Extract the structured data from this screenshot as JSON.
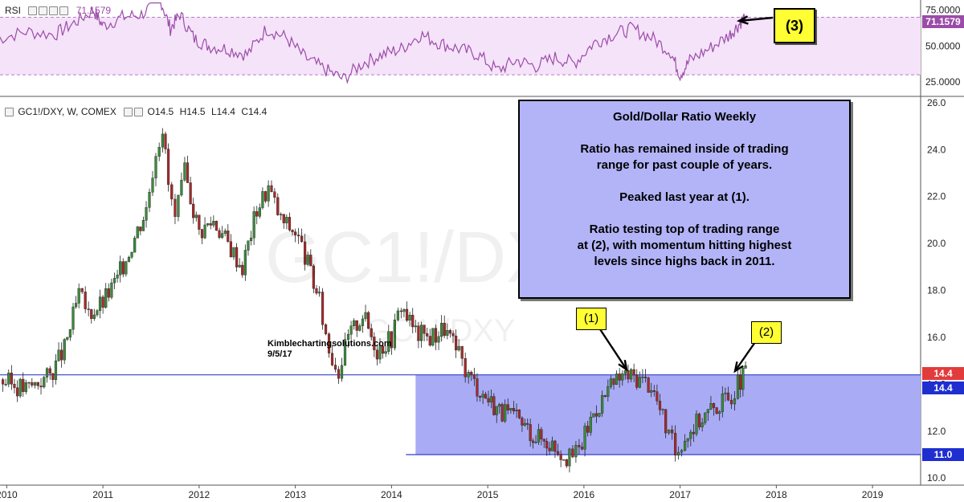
{
  "chart_data": [
    {
      "type": "line",
      "panel": "indicator",
      "indicator_name": "RSI",
      "current_value_label": "71.1579",
      "ylim": [
        15,
        82
      ],
      "y_ticks": [
        "75.0000",
        "50.0000",
        "25.0000"
      ],
      "y_tick_values": [
        75,
        50,
        25
      ],
      "band_bounds": [
        30,
        70
      ],
      "band_color": "#f5e3f9",
      "line_color": "#9b4ca8",
      "x": [
        2009.9,
        2010.2,
        2010.5,
        2010.7,
        2010.9,
        2011.0,
        2011.2,
        2011.4,
        2011.6,
        2011.7,
        2011.8,
        2011.95,
        2012.1,
        2012.3,
        2012.5,
        2012.7,
        2012.9,
        2013.1,
        2013.3,
        2013.5,
        2013.7,
        2013.9,
        2014.1,
        2014.3,
        2014.5,
        2014.7,
        2014.9,
        2015.1,
        2015.3,
        2015.5,
        2015.7,
        2015.9,
        2016.1,
        2016.3,
        2016.5,
        2016.7,
        2016.9,
        2017.0,
        2017.1,
        2017.3,
        2017.5,
        2017.6,
        2017.68
      ],
      "values": [
        55,
        60,
        58,
        66,
        75,
        64,
        70,
        72,
        82,
        62,
        72,
        55,
        50,
        48,
        44,
        62,
        56,
        42,
        34,
        27,
        38,
        44,
        48,
        58,
        52,
        48,
        44,
        33,
        40,
        36,
        42,
        38,
        52,
        58,
        62,
        56,
        46,
        30,
        40,
        48,
        57,
        64,
        71.1579
      ]
    },
    {
      "type": "candlestick",
      "panel": "price",
      "symbol_label": "GC1!/DXY, W, COMEX",
      "ohlc_label": {
        "open": "O14.5",
        "high": "H14.5",
        "low": "L14.4",
        "close": "C14.4"
      },
      "x_ticks": [
        "2010",
        "2011",
        "2012",
        "2013",
        "2014",
        "2015",
        "2016",
        "2017",
        "2018",
        "2019"
      ],
      "x_tick_values": [
        2010,
        2011,
        2012,
        2013,
        2014,
        2015,
        2016,
        2017,
        2018,
        2019
      ],
      "xlim": [
        2009.93,
        2019.5
      ],
      "y_ticks": [
        "26.0",
        "24.0",
        "22.0",
        "20.0",
        "18.0",
        "16.0",
        "14.0",
        "12.0",
        "10.0"
      ],
      "y_tick_values": [
        26,
        24,
        22,
        20,
        18,
        16,
        14,
        12,
        10
      ],
      "ylim": [
        9.7,
        26.2
      ],
      "up_color": "#3b8a3b",
      "down_color": "#a52a2a",
      "x": [
        2009.93,
        2010.2,
        2010.45,
        2010.6,
        2010.75,
        2010.85,
        2011.0,
        2011.15,
        2011.3,
        2011.45,
        2011.55,
        2011.62,
        2011.68,
        2011.75,
        2011.85,
        2012.0,
        2012.15,
        2012.3,
        2012.45,
        2012.6,
        2012.72,
        2012.85,
        2013.0,
        2013.1,
        2013.25,
        2013.35,
        2013.45,
        2013.55,
        2013.7,
        2013.85,
        2014.0,
        2014.1,
        2014.25,
        2014.4,
        2014.55,
        2014.7,
        2014.8,
        2014.95,
        2015.15,
        2015.3,
        2015.5,
        2015.7,
        2015.85,
        2015.95,
        2016.1,
        2016.25,
        2016.4,
        2016.55,
        2016.7,
        2016.85,
        2016.95,
        2017.05,
        2017.2,
        2017.35,
        2017.5,
        2017.6,
        2017.68
      ],
      "values": [
        14.2,
        13.8,
        14.4,
        15.5,
        17.8,
        17.0,
        17.5,
        18.5,
        20.0,
        21.5,
        24.0,
        25.0,
        22.5,
        21.0,
        23.0,
        20.5,
        21.0,
        20.0,
        19.0,
        21.5,
        22.4,
        21.0,
        20.5,
        19.5,
        17.5,
        15.5,
        14.6,
        16.0,
        17.0,
        15.5,
        16.0,
        17.4,
        16.2,
        16.0,
        16.4,
        15.2,
        14.4,
        13.6,
        12.8,
        12.5,
        11.8,
        11.4,
        10.8,
        11.2,
        12.8,
        13.7,
        14.4,
        14.3,
        14.0,
        12.2,
        11.1,
        11.8,
        12.5,
        13.0,
        13.4,
        14.0,
        14.4
      ],
      "last_price_labels": [
        {
          "text": "14.4",
          "value": 14.4,
          "color": "#e23b3b"
        },
        {
          "text": "14.4",
          "value": 14.4,
          "color": "#1f2fcf"
        },
        {
          "text": "11.0",
          "value": 11.0,
          "color": "#1f2fcf"
        }
      ],
      "trading_range": {
        "top": 14.4,
        "bottom": 11.0,
        "x_start": 2014.25,
        "x_end": 2019.5,
        "color": "#a9acf5"
      },
      "support_line": {
        "value": 14.4,
        "x_start": 2009.93,
        "x_end": 2014.25
      },
      "lower_line": {
        "value": 11.0,
        "x_start": 2014.15,
        "x_end": 2014.25
      },
      "watermark": "GC1!/DXY",
      "credit_lines": [
        "Kimblechartingsolutions.com",
        "9/5/17"
      ]
    }
  ],
  "annotation": {
    "lines": [
      "Gold/Dollar Ratio Weekly",
      "",
      "Ratio has remained inside of trading",
      "range for past couple of years.",
      "",
      "Peaked last year at (1).",
      "",
      "Ratio testing top of trading range",
      "at (2), with momentum hitting highest",
      "levels since highs back in 2011."
    ],
    "box_color": "#b3b4f7"
  },
  "labels": {
    "marker_1": "(1)",
    "marker_2": "(2)",
    "marker_3": "(3)",
    "marker_color": "#ffff33"
  }
}
